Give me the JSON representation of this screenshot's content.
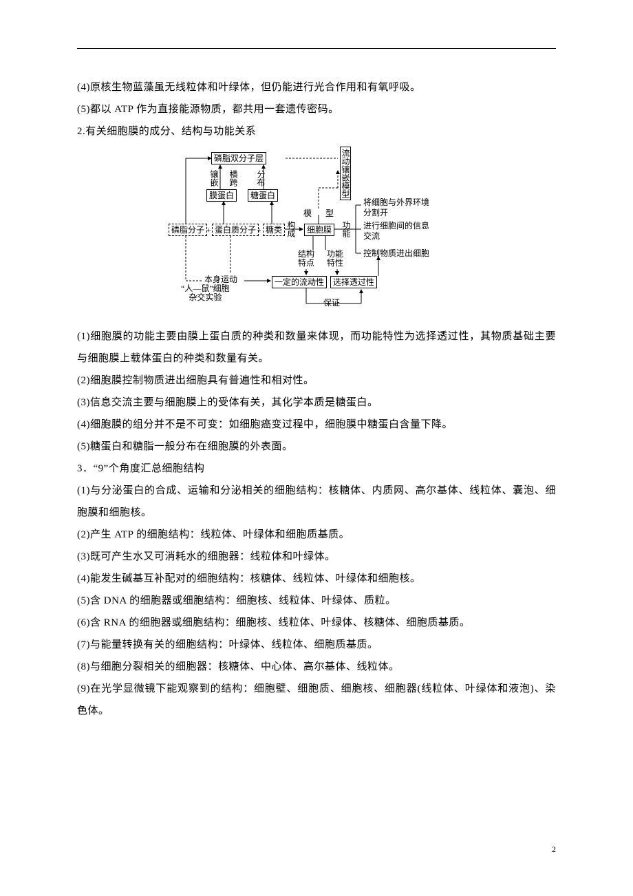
{
  "rule_color": "#000000",
  "body_font_size": 15,
  "body_line_height": 32,
  "diagram_font_size": 12,
  "page_number": "2",
  "pre_diagram_lines": [
    "(4)原核生物蓝藻虽无线粒体和叶绿体，但仍能进行光合作用和有氧呼吸。",
    "(5)都以 ATP 作为直接能源物质，都共用一套遗传密码。",
    "2.有关细胞膜的成分、结构与功能关系"
  ],
  "post_diagram_lines": [
    "(1)细胞膜的功能主要由膜上蛋白质的种类和数量来体现，而功能特性为选择透过性，其物质基础主要与细胞膜上载体蛋白的种类和数量有关。",
    "(2)细胞膜控制物质进出细胞具有普遍性和相对性。",
    "(3)信息交流主要与细胞膜上的受体有关，其化学本质是糖蛋白。",
    "(4)细胞膜的组分并不是不可变：如细胞癌变过程中，细胞膜中糖蛋白含量下降。",
    "(5)糖蛋白和糖脂一般分布在细胞膜的外表面。",
    "3．“9”个角度汇总细胞结构",
    "(1)与分泌蛋白的合成、运输和分泌相关的细胞结构：核糖体、内质网、高尔基体、线粒体、囊泡、细胞膜和细胞核。",
    "(2)产生 ATP 的细胞结构：线粒体、叶绿体和细胞质基质。",
    "(3)既可产生水又可消耗水的细胞器：线粒体和叶绿体。",
    "(4)能发生碱基互补配对的细胞结构：核糖体、线粒体、叶绿体和细胞核。",
    "(5)含 DNA 的细胞器或细胞结构：细胞核、线粒体、叶绿体、质粒。",
    "(6)含 RNA 的细胞器或细胞结构：细胞核、线粒体、叶绿体、核糖体、细胞质基质。",
    "(7)与能量转换有关的细胞结构：叶绿体、线粒体、细胞质基质。",
    "(8)与细胞分裂相关的细胞器：核糖体、中心体、高尔基体、线粒体。",
    "(9)在光学显微镜下能观察到的结构：细胞壁、细胞质、细胞核、细胞器(线粒体、叶绿体和液泡)、染色体。"
  ],
  "diagram": {
    "phospholipid_bilayer": "磷脂双分子层",
    "inlay": "镶嵌",
    "span": "横跨",
    "distribution": "分布",
    "membrane_protein": "膜蛋白",
    "glycoprotein": "糖蛋白",
    "phospholipid_molecule": "磷脂分子",
    "protein_molecule": "蛋白质分子",
    "sugar": "糖类",
    "compose": "构成",
    "cell_membrane": "细胞膜",
    "function": "功能",
    "model": "模　型",
    "fluid_mosaic_model": "流动镶嵌模型",
    "env_separate": "将细胞与外界环境分割开",
    "info_exchange": "进行细胞间的信息交流",
    "control_transport": "控制物质进出细胞",
    "structure_feature": "结构特点",
    "function_feature": "功能特性",
    "self_movement": "本身运动",
    "fluidity": "一定的流动性",
    "selective_permeability": "选择透过性",
    "human_mouse": "“人—鼠”细胞杂交实验",
    "guarantee": "保证",
    "plus": "+"
  }
}
